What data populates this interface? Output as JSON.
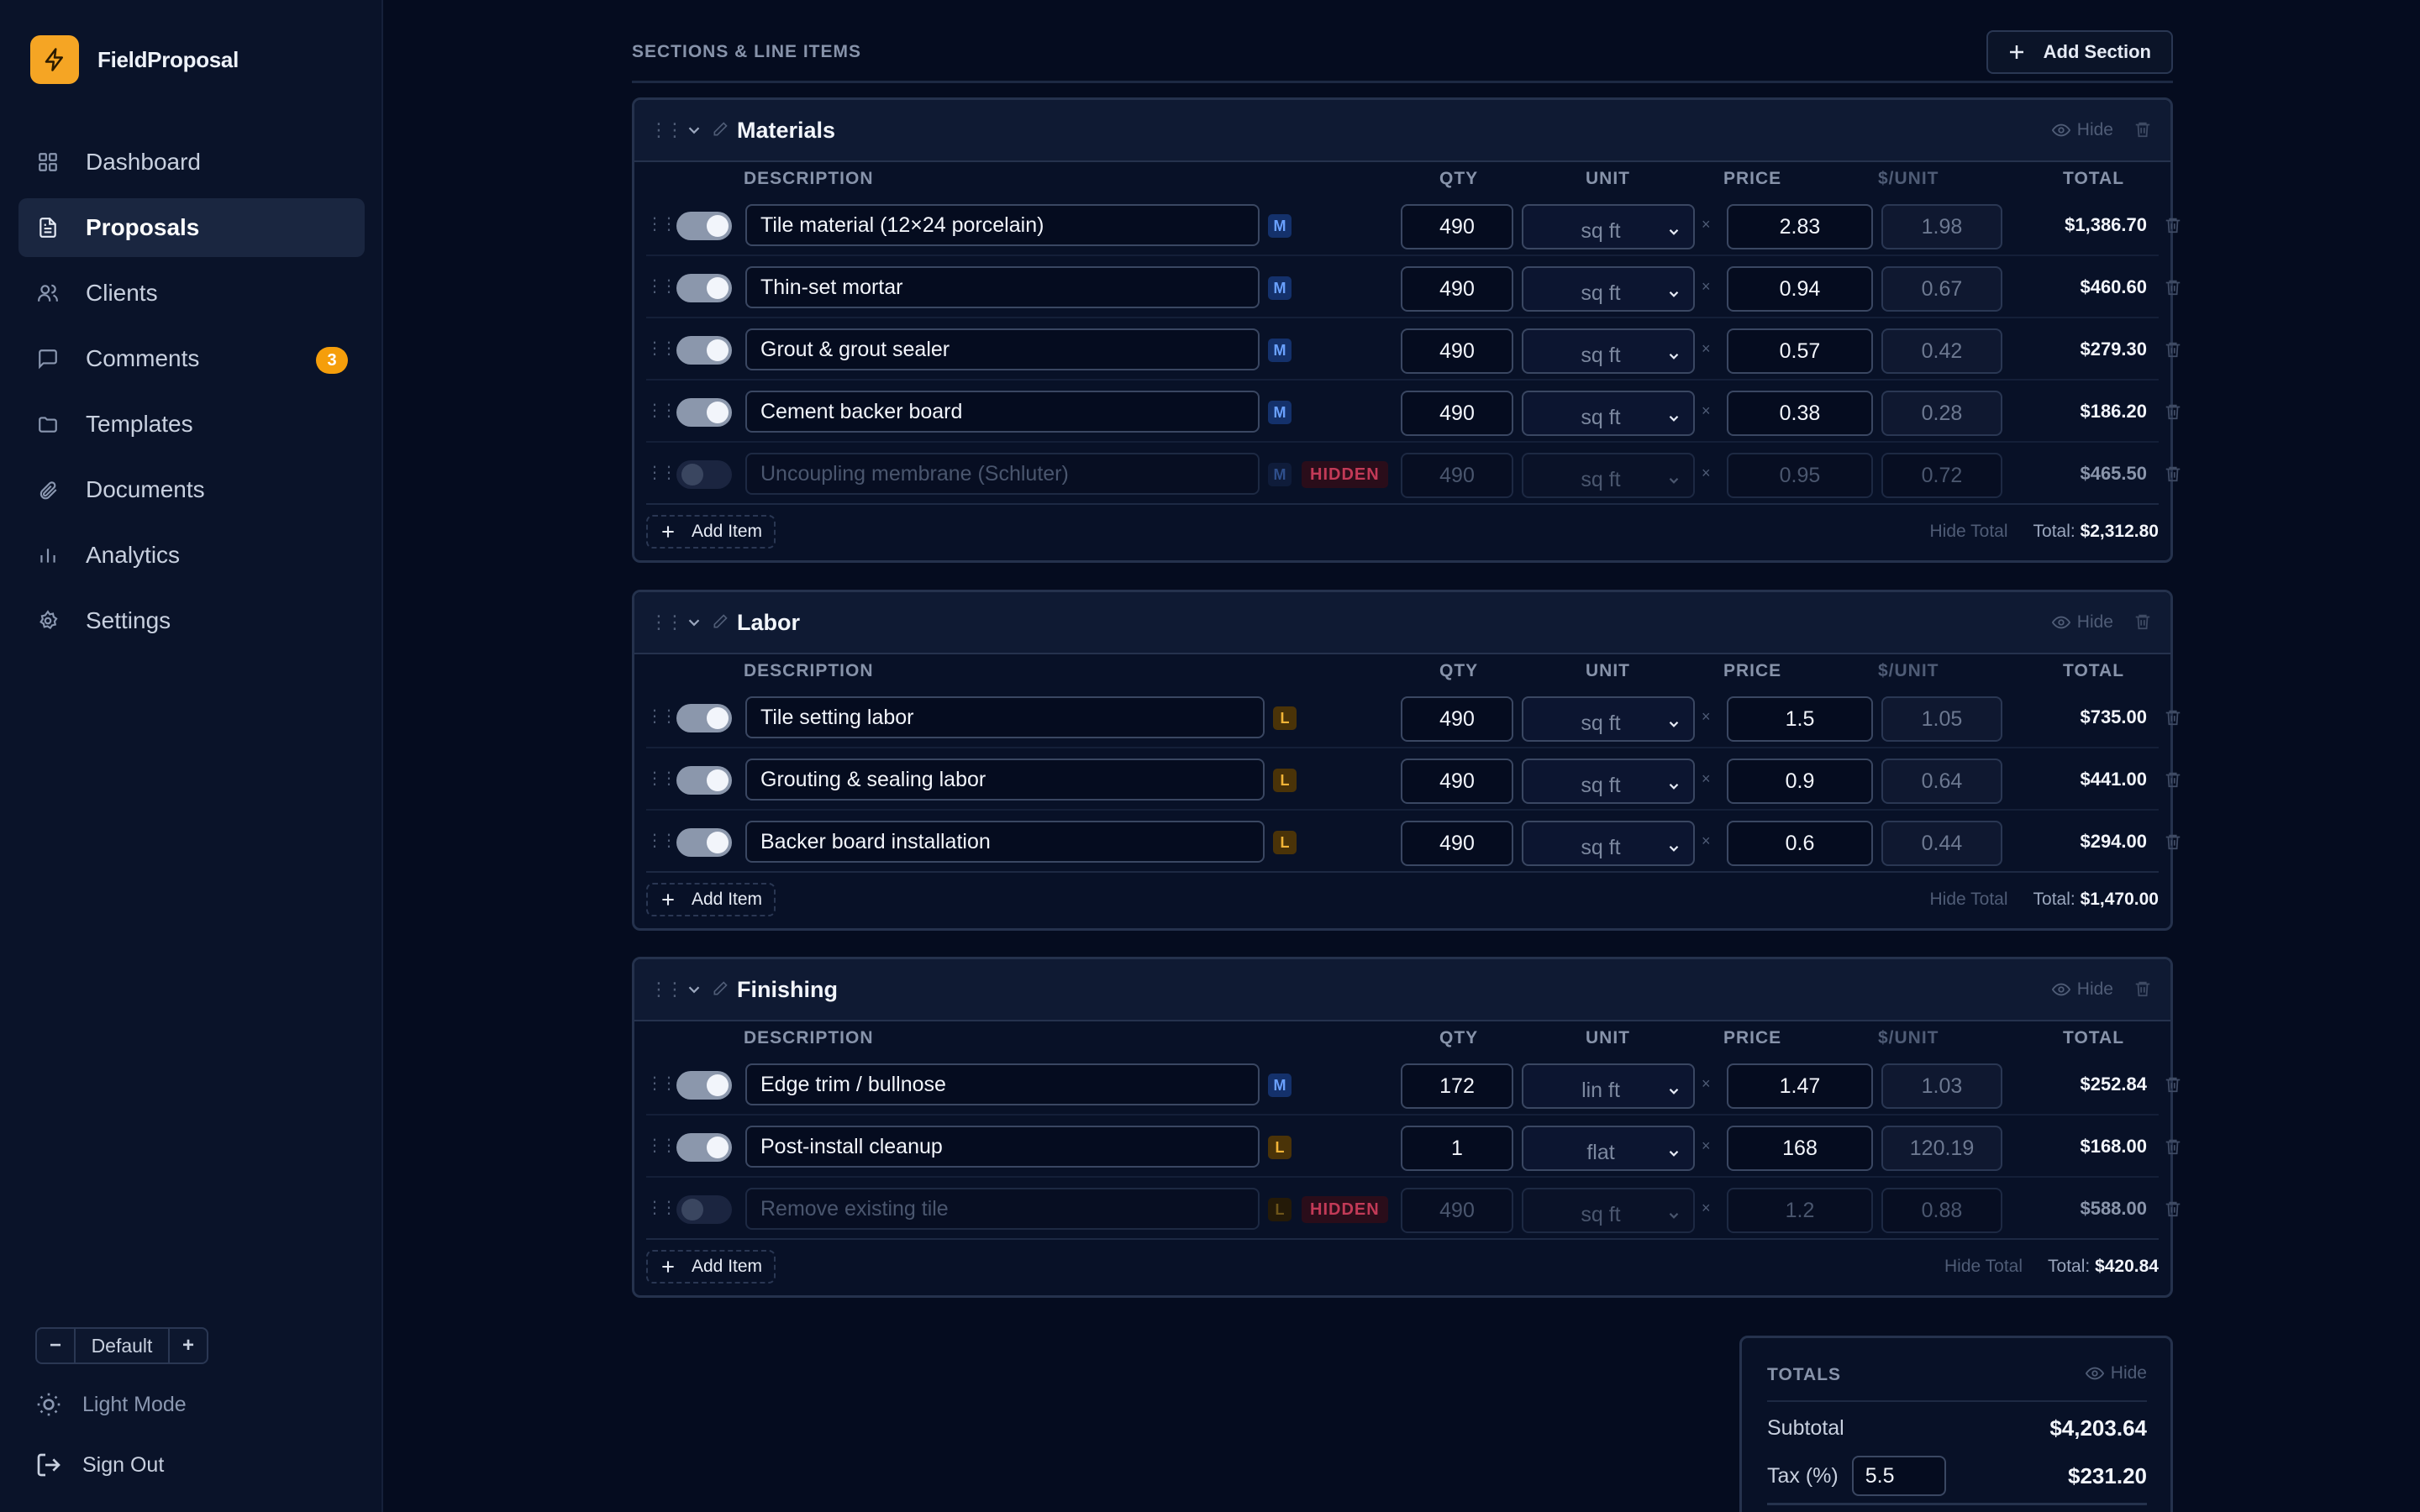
{
  "brand": {
    "name": "FieldProposal",
    "accent": "#f5a524"
  },
  "nav": [
    {
      "label": "Dashboard",
      "icon": "dashboard-icon",
      "active": false
    },
    {
      "label": "Proposals",
      "icon": "file-icon",
      "active": true
    },
    {
      "label": "Clients",
      "icon": "users-icon",
      "active": false
    },
    {
      "label": "Comments",
      "icon": "comment-icon",
      "active": false,
      "badge": "3"
    },
    {
      "label": "Templates",
      "icon": "folder-icon",
      "active": false
    },
    {
      "label": "Documents",
      "icon": "paperclip-icon",
      "active": false
    },
    {
      "label": "Analytics",
      "icon": "bar-chart-icon",
      "active": false
    },
    {
      "label": "Settings",
      "icon": "gear-icon",
      "active": false
    }
  ],
  "zoom": {
    "minus": "−",
    "value": "Default",
    "plus": "+"
  },
  "theme_toggle": "Light Mode",
  "sign_out": "Sign Out",
  "page": {
    "heading": "SECTIONS & LINE ITEMS",
    "add_section": "Add Section"
  },
  "columns": {
    "description": "DESCRIPTION",
    "qty": "QTY",
    "unit": "UNIT",
    "price": "PRICE",
    "per_unit": "$/UNIT",
    "total": "TOTAL"
  },
  "common": {
    "hide": "Hide",
    "add_item": "Add Item",
    "hide_total": "Hide Total",
    "total_label": "Total:",
    "hidden_badge": "HIDDEN",
    "times": "×"
  },
  "sections": [
    {
      "title": "Materials",
      "total": "$2,312.80",
      "items": [
        {
          "enabled": true,
          "description": "Tile material (12×24 porcelain)",
          "tag": "M",
          "qty": "490",
          "unit": "sq ft",
          "price": "2.83",
          "per_unit": "1.98",
          "total": "$1,386.70"
        },
        {
          "enabled": true,
          "description": "Thin-set mortar",
          "tag": "M",
          "qty": "490",
          "unit": "sq ft",
          "price": "0.94",
          "per_unit": "0.67",
          "total": "$460.60"
        },
        {
          "enabled": true,
          "description": "Grout & grout sealer",
          "tag": "M",
          "qty": "490",
          "unit": "sq ft",
          "price": "0.57",
          "per_unit": "0.42",
          "total": "$279.30"
        },
        {
          "enabled": true,
          "description": "Cement backer board",
          "tag": "M",
          "qty": "490",
          "unit": "sq ft",
          "price": "0.38",
          "per_unit": "0.28",
          "total": "$186.20"
        },
        {
          "enabled": false,
          "description": "Uncoupling membrane (Schluter)",
          "tag": "M",
          "qty": "490",
          "unit": "sq ft",
          "price": "0.95",
          "per_unit": "0.72",
          "total": "$465.50",
          "hidden": true
        }
      ]
    },
    {
      "title": "Labor",
      "total": "$1,470.00",
      "items": [
        {
          "enabled": true,
          "description": "Tile setting labor",
          "tag": "L",
          "qty": "490",
          "unit": "sq ft",
          "price": "1.5",
          "per_unit": "1.05",
          "total": "$735.00"
        },
        {
          "enabled": true,
          "description": "Grouting & sealing labor",
          "tag": "L",
          "qty": "490",
          "unit": "sq ft",
          "price": "0.9",
          "per_unit": "0.64",
          "total": "$441.00"
        },
        {
          "enabled": true,
          "description": "Backer board installation",
          "tag": "L",
          "qty": "490",
          "unit": "sq ft",
          "price": "0.6",
          "per_unit": "0.44",
          "total": "$294.00"
        }
      ]
    },
    {
      "title": "Finishing",
      "total": "$420.84",
      "items": [
        {
          "enabled": true,
          "description": "Edge trim / bullnose",
          "tag": "M",
          "qty": "172",
          "unit": "lin ft",
          "price": "1.47",
          "per_unit": "1.03",
          "total": "$252.84"
        },
        {
          "enabled": true,
          "description": "Post-install cleanup",
          "tag": "L",
          "qty": "1",
          "unit": "flat",
          "price": "168",
          "per_unit": "120.19",
          "total": "$168.00"
        },
        {
          "enabled": false,
          "description": "Remove existing tile",
          "tag": "L",
          "qty": "490",
          "unit": "sq ft",
          "price": "1.2",
          "per_unit": "0.88",
          "total": "$588.00",
          "hidden": true
        }
      ]
    }
  ],
  "totals": {
    "title": "TOTALS",
    "hide": "Hide",
    "subtotal_label": "Subtotal",
    "subtotal": "$4,203.64",
    "tax_label": "Tax (%)",
    "tax_rate": "5.5",
    "tax_amount": "$231.20"
  }
}
